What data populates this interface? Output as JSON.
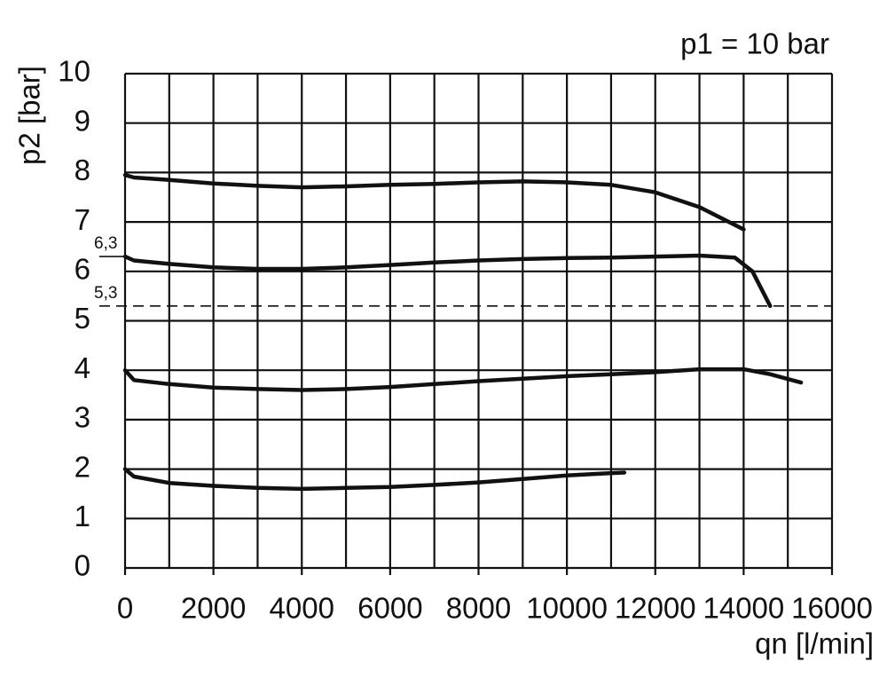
{
  "chart_data": {
    "type": "line",
    "annotation": "p1 = 10 bar",
    "x_label": "qn [l/min]",
    "y_label": "p2 [bar]",
    "xlim": [
      0,
      16000
    ],
    "ylim": [
      0,
      10
    ],
    "xticks": [
      0,
      2000,
      4000,
      6000,
      8000,
      10000,
      12000,
      14000,
      16000
    ],
    "xminorticks": [
      1000,
      3000,
      5000,
      7000,
      9000,
      11000,
      13000,
      15000
    ],
    "yticks": [
      0,
      1,
      2,
      3,
      4,
      5,
      6,
      7,
      8,
      9,
      10
    ],
    "grid": true,
    "reference_lines": [
      {
        "value": 6.3,
        "label": "6,3",
        "dashed": false
      },
      {
        "value": 5.3,
        "label": "5,3",
        "dashed": true
      }
    ],
    "series": [
      {
        "color": "#111111",
        "x": [
          0,
          200,
          1000,
          2000,
          3000,
          4000,
          5000,
          6000,
          7000,
          8000,
          9000,
          10000,
          11000,
          12000,
          13000,
          14000
        ],
        "values": [
          7.95,
          7.9,
          7.85,
          7.78,
          7.73,
          7.7,
          7.72,
          7.75,
          7.77,
          7.8,
          7.82,
          7.8,
          7.75,
          7.6,
          7.3,
          6.85
        ]
      },
      {
        "color": "#111111",
        "x": [
          0,
          200,
          1000,
          2000,
          3000,
          4000,
          5000,
          6000,
          7000,
          8000,
          9000,
          10000,
          11000,
          12000,
          13000,
          13800,
          14200,
          14600
        ],
        "values": [
          6.3,
          6.22,
          6.15,
          6.08,
          6.05,
          6.05,
          6.08,
          6.13,
          6.18,
          6.22,
          6.25,
          6.27,
          6.28,
          6.3,
          6.32,
          6.28,
          6.0,
          5.3
        ]
      },
      {
        "color": "#111111",
        "x": [
          0,
          200,
          1000,
          2000,
          3000,
          4000,
          5000,
          6000,
          7000,
          8000,
          9000,
          10000,
          11000,
          12000,
          13000,
          14000,
          14600,
          15300
        ],
        "values": [
          4.0,
          3.8,
          3.72,
          3.65,
          3.62,
          3.6,
          3.62,
          3.66,
          3.72,
          3.78,
          3.83,
          3.88,
          3.92,
          3.96,
          4.02,
          4.02,
          3.92,
          3.75
        ]
      },
      {
        "color": "#111111",
        "x": [
          0,
          200,
          1000,
          2000,
          3000,
          4000,
          5000,
          6000,
          7000,
          8000,
          9000,
          10000,
          11000,
          11300
        ],
        "values": [
          2.0,
          1.85,
          1.72,
          1.66,
          1.62,
          1.6,
          1.62,
          1.64,
          1.68,
          1.73,
          1.8,
          1.87,
          1.92,
          1.93
        ]
      }
    ]
  }
}
